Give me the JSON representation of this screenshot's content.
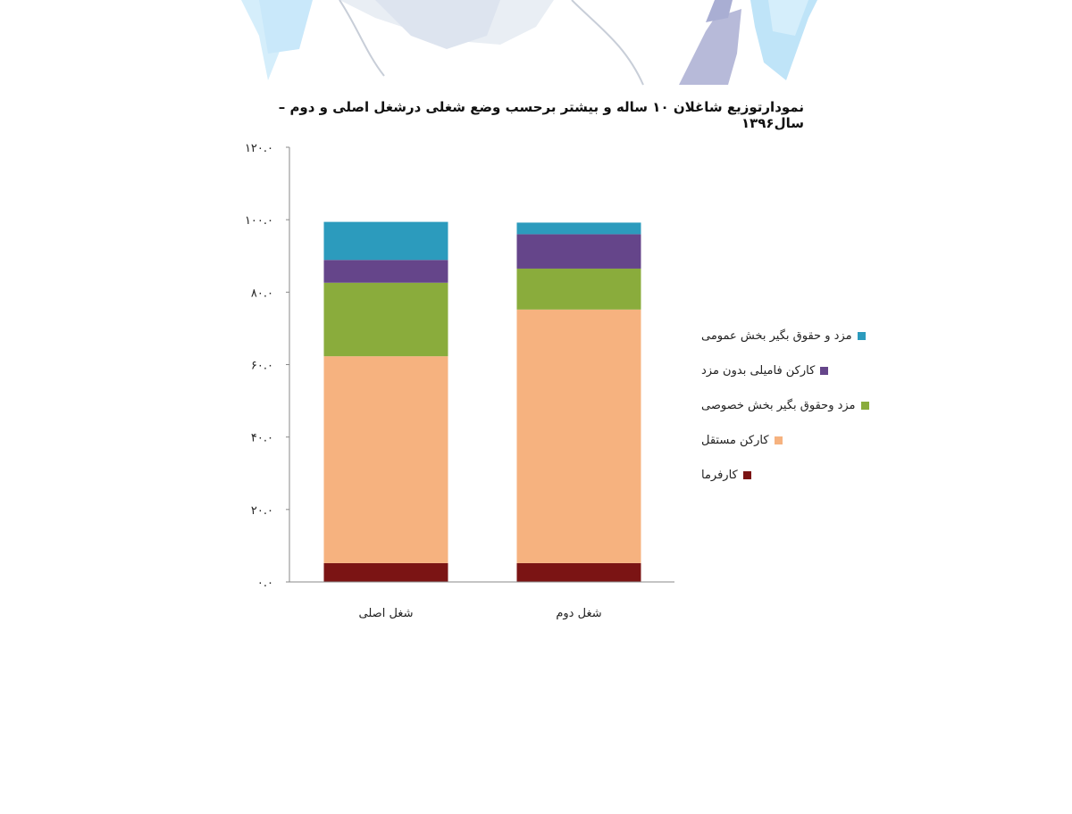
{
  "chart_data": {
    "type": "bar",
    "stacked": true,
    "title": "نمودارتوزیع شاغلان ۱۰ ساله و بیشتر برحسب وضع شغلی درشغل اصلی و دوم – سال۱۳۹۶",
    "categories": [
      "شغل اصلی",
      "شغل دوم"
    ],
    "ylim": [
      0,
      120
    ],
    "yticks": [
      0,
      20,
      40,
      60,
      80,
      100,
      120
    ],
    "ytick_labels": [
      "۰.۰",
      "۲۰.۰",
      "۴۰.۰",
      "۶۰.۰",
      "۸۰.۰",
      "۱۰۰.۰",
      "۱۲۰.۰"
    ],
    "grid": false,
    "legend_position": "right",
    "series": [
      {
        "name": "کارفرما",
        "color": "#7b1414",
        "values": [
          5.2,
          5.2
        ]
      },
      {
        "name": "کارکن مستقل",
        "color": "#f6b27f",
        "values": [
          57.1,
          70.0
        ]
      },
      {
        "name": "مزد وحقوق بگیر بخش خصوصی",
        "color": "#8aac3c",
        "values": [
          20.3,
          11.3
        ]
      },
      {
        "name": "کارکن فامیلی بدون مزد",
        "color": "#65458a",
        "values": [
          6.3,
          9.5
        ]
      },
      {
        "name": "مزد و حقوق بگیر بخش عمومی",
        "color": "#2c9bbd",
        "values": [
          10.5,
          3.2
        ]
      }
    ]
  }
}
